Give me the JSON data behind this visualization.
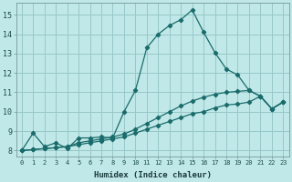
{
  "xlabel": "Humidex (Indice chaleur)",
  "bg_color": "#c0e8e8",
  "line_color": "#1a6b6b",
  "grid_color": "#98c8c8",
  "xlim": [
    -0.5,
    23.5
  ],
  "ylim": [
    7.7,
    15.6
  ],
  "xticks": [
    0,
    1,
    2,
    3,
    4,
    5,
    6,
    7,
    8,
    9,
    10,
    11,
    12,
    13,
    14,
    15,
    16,
    17,
    18,
    19,
    20,
    21,
    22,
    23
  ],
  "yticks": [
    8,
    9,
    10,
    11,
    12,
    13,
    14,
    15
  ],
  "lines": [
    {
      "x": [
        0,
        1,
        2,
        3,
        4,
        5,
        6,
        7,
        8,
        9,
        10,
        11,
        12,
        13,
        14,
        15,
        16,
        17,
        18,
        19,
        20,
        21,
        22,
        23
      ],
      "y": [
        8.0,
        8.9,
        8.2,
        8.4,
        8.1,
        8.65,
        8.65,
        8.7,
        8.65,
        10.0,
        11.1,
        13.3,
        14.0,
        14.45,
        14.75,
        15.25,
        14.1,
        13.05,
        12.2,
        11.9,
        11.1,
        10.8,
        10.15,
        10.5
      ]
    },
    {
      "x": [
        0,
        1,
        2,
        3,
        4,
        5,
        6,
        7,
        8,
        9,
        10,
        11,
        12,
        13,
        14,
        15,
        16,
        17,
        18,
        19,
        20,
        21,
        22,
        23
      ],
      "y": [
        8.0,
        8.05,
        8.1,
        8.15,
        8.2,
        8.4,
        8.5,
        8.6,
        8.7,
        8.85,
        9.1,
        9.4,
        9.7,
        10.0,
        10.3,
        10.55,
        10.75,
        10.9,
        11.0,
        11.05,
        11.1,
        10.8,
        10.15,
        10.5
      ]
    },
    {
      "x": [
        0,
        1,
        2,
        3,
        4,
        5,
        6,
        7,
        8,
        9,
        10,
        11,
        12,
        13,
        14,
        15,
        16,
        17,
        18,
        19,
        20,
        21,
        22,
        23
      ],
      "y": [
        8.0,
        8.05,
        8.1,
        8.15,
        8.2,
        8.3,
        8.4,
        8.5,
        8.6,
        8.7,
        8.9,
        9.1,
        9.3,
        9.5,
        9.7,
        9.9,
        10.0,
        10.2,
        10.35,
        10.4,
        10.5,
        10.8,
        10.15,
        10.5
      ]
    }
  ]
}
